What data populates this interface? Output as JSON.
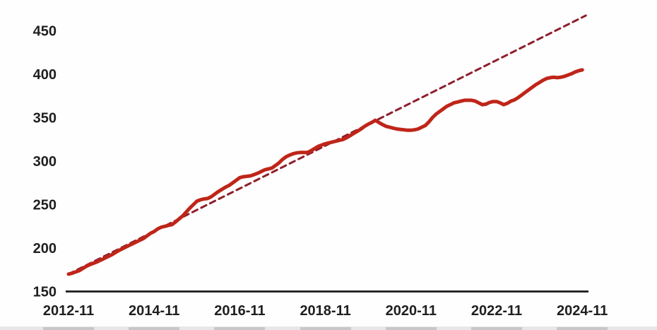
{
  "chart_data": {
    "type": "line",
    "title": "",
    "xlabel": "",
    "ylabel": "",
    "grid": false,
    "legend": "none",
    "x_axis": {
      "start": "2012-11",
      "end": "2024-11",
      "frequency": "monthly",
      "tick_labels": [
        "2012-11",
        "2014-11",
        "2016-11",
        "2018-11",
        "2020-11",
        "2022-11",
        "2024-11"
      ],
      "tick_month_indices": [
        0,
        24,
        48,
        72,
        96,
        120,
        144
      ]
    },
    "y_axis": {
      "tick_labels": [
        "150",
        "200",
        "250",
        "300",
        "350",
        "400",
        "450"
      ],
      "ticks": [
        150,
        200,
        250,
        300,
        350,
        400,
        450
      ],
      "range": [
        150,
        470
      ]
    },
    "series": [
      {
        "name": "actual-values",
        "style": "solid",
        "color": "#bf2519",
        "stroke_width": 5,
        "start_month": "2012-11",
        "values": [
          170,
          171,
          172.5,
          174,
          176.5,
          179,
          181,
          182.5,
          184,
          186,
          188,
          190,
          192,
          194.5,
          197,
          199,
          201,
          203,
          205,
          207,
          209,
          211,
          214,
          217,
          219,
          222,
          224,
          225,
          226,
          227,
          230,
          233.5,
          237,
          241.5,
          246,
          250,
          254,
          255.5,
          256.5,
          257,
          259,
          262,
          265,
          267.5,
          270,
          272,
          275,
          278,
          281,
          282,
          282.5,
          283,
          284.5,
          286,
          288,
          290,
          291,
          292,
          295,
          298,
          302,
          305,
          307,
          308.5,
          309.5,
          310,
          310,
          310,
          312,
          314.5,
          317,
          318.5,
          320,
          321,
          322,
          323,
          324,
          325,
          327,
          329.5,
          332,
          334.5,
          337,
          340,
          342.5,
          344.5,
          347,
          344.5,
          342,
          340,
          339,
          338,
          337,
          336.5,
          336,
          335.5,
          335.5,
          336,
          337,
          339,
          341,
          345,
          350,
          354,
          357,
          360,
          363,
          365,
          367,
          368,
          369,
          370,
          370,
          370,
          369,
          367,
          365,
          365.5,
          367.5,
          368.5,
          368.5,
          367,
          365,
          366.5,
          369,
          370.5,
          373,
          376,
          379,
          382,
          385,
          388,
          390.5,
          393,
          395,
          396,
          396.5,
          396,
          396.5,
          397.5,
          399,
          400.5,
          402.5,
          404,
          405
        ]
      },
      {
        "name": "linear-trend",
        "style": "dashed",
        "color": "#8e1f2b",
        "stroke_width": 3,
        "trend_line": {
          "start_month_index": 0,
          "start_value": 170,
          "end_month_index": 145,
          "end_value": 467.5
        }
      }
    ],
    "colors": {
      "axis": "#1a1a1a",
      "tick_text": "#1f1f1f",
      "background": "#fefefe",
      "bottom_strip": "#e7e7e7",
      "bottom_strip_segment": "#c7c7c7"
    }
  }
}
